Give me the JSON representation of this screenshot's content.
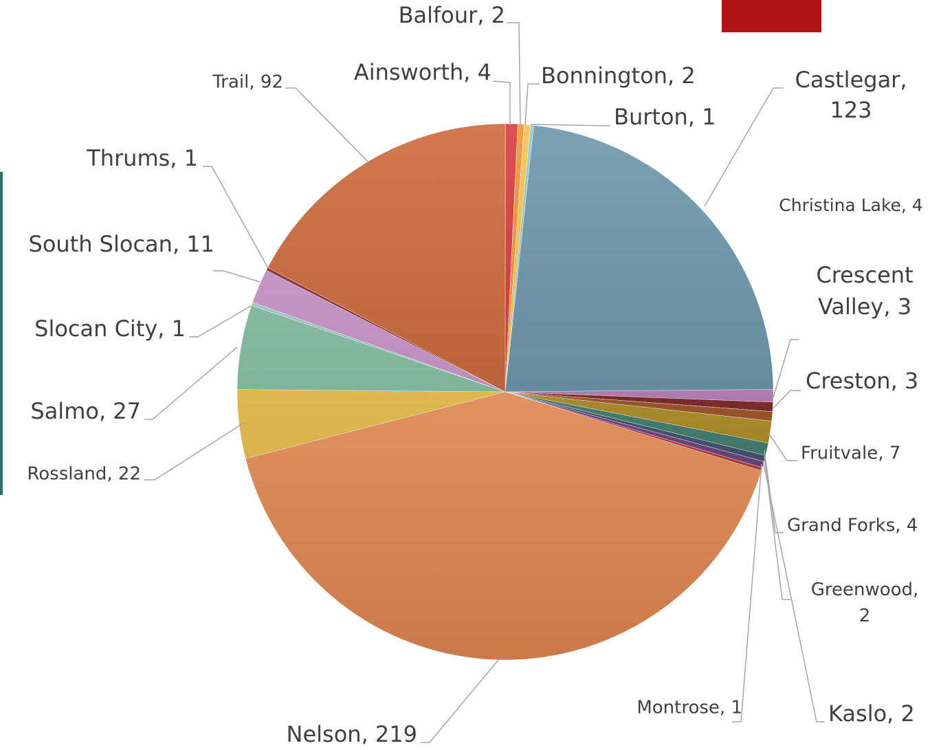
{
  "chart_data": {
    "type": "pie",
    "labels": [
      "Ainsworth, 4",
      "Balfour, 2",
      "Bonnington, 2",
      "Burton, 1",
      "Castlegar, 123",
      "Christina Lake, 4",
      "Crescent Valley, 3",
      "Creston, 3",
      "Fruitvale, 7",
      "Grand Forks, 4",
      "Greenwood, 2",
      "Kaslo, 2",
      "Montrose, 1",
      "Nelson, 219",
      "Rossland, 22",
      "Salmo, 27",
      "Slocan City, 1",
      "South Slocan, 11",
      "Thrums, 1",
      "Trail, 92"
    ],
    "values": [
      4,
      2,
      2,
      1,
      123,
      4,
      3,
      3,
      7,
      4,
      2,
      2,
      1,
      219,
      22,
      27,
      1,
      11,
      1,
      92
    ],
    "colors": [
      "#d42a2a",
      "#f08a2a",
      "#f0c040",
      "#8fc0c0",
      "#5f8da2",
      "#b87ab8",
      "#7a1a1a",
      "#a04a1a",
      "#b08c1c",
      "#3a7a6a",
      "#3a4a6a",
      "#6a3a7a",
      "#c03030",
      "#f7945a",
      "#f2c546",
      "#7fbf9f",
      "#a0c8c8",
      "#c890c8",
      "#8a2020",
      "#c85c2a"
    ]
  }
}
